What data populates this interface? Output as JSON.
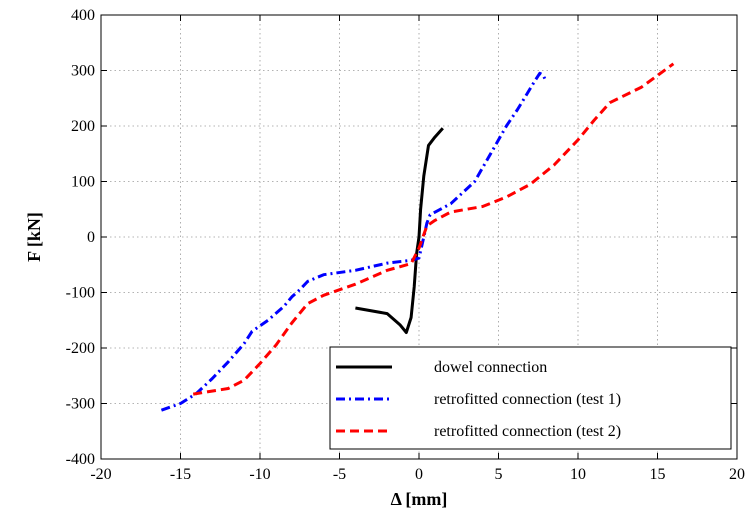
{
  "chart_data": {
    "type": "line",
    "title": "",
    "xlabel": "Δ [mm]",
    "ylabel": "F [kN]",
    "xlim": [
      -20,
      20
    ],
    "ylim": [
      -400,
      400
    ],
    "xticks": [
      -20,
      -15,
      -10,
      -5,
      0,
      5,
      10,
      15,
      20
    ],
    "yticks": [
      -400,
      -300,
      -200,
      -100,
      0,
      100,
      200,
      300,
      400
    ],
    "grid": true,
    "grid_style": "dotted",
    "legend_position": "bottom-right",
    "series": [
      {
        "name": "dowel connection",
        "color": "#000000",
        "style": "solid",
        "points": [
          [
            -4,
            -128
          ],
          [
            -2,
            -138
          ],
          [
            -1.2,
            -158
          ],
          [
            -0.8,
            -172
          ],
          [
            -0.5,
            -145
          ],
          [
            -0.3,
            -90
          ],
          [
            -0.15,
            -30
          ],
          [
            0,
            0
          ],
          [
            0.1,
            50
          ],
          [
            0.3,
            110
          ],
          [
            0.6,
            165
          ],
          [
            1,
            180
          ],
          [
            1.5,
            196
          ]
        ]
      },
      {
        "name": "retrofitted connection (test 1)",
        "color": "#0000ff",
        "style": "dashdot",
        "points": [
          [
            -16.2,
            -312
          ],
          [
            -15,
            -300
          ],
          [
            -14,
            -282
          ],
          [
            -13,
            -255
          ],
          [
            -12,
            -225
          ],
          [
            -11,
            -192
          ],
          [
            -10.5,
            -170
          ],
          [
            -9.5,
            -150
          ],
          [
            -8.5,
            -125
          ],
          [
            -8,
            -108
          ],
          [
            -7.5,
            -95
          ],
          [
            -7,
            -80
          ],
          [
            -6,
            -68
          ],
          [
            -4,
            -60
          ],
          [
            -2,
            -47
          ],
          [
            -0.5,
            -42
          ],
          [
            0,
            -38
          ],
          [
            0.3,
            0
          ],
          [
            0.5,
            25
          ],
          [
            0.7,
            40
          ],
          [
            2,
            60
          ],
          [
            3.5,
            100
          ],
          [
            4.5,
            150
          ],
          [
            5.5,
            200
          ],
          [
            6.2,
            230
          ],
          [
            7.3,
            282
          ],
          [
            7.6,
            295
          ],
          [
            7.8,
            292
          ],
          [
            8,
            280
          ]
        ]
      },
      {
        "name": "retrofitted connection (test 2)",
        "color": "#ff0000",
        "style": "dashed",
        "points": [
          [
            -14.2,
            -283
          ],
          [
            -12,
            -273
          ],
          [
            -11,
            -258
          ],
          [
            -10,
            -228
          ],
          [
            -9,
            -195
          ],
          [
            -8,
            -155
          ],
          [
            -7,
            -120
          ],
          [
            -6,
            -105
          ],
          [
            -4,
            -85
          ],
          [
            -2,
            -60
          ],
          [
            -0.5,
            -48
          ],
          [
            0,
            -20
          ],
          [
            0.5,
            20
          ],
          [
            1,
            30
          ],
          [
            2,
            45
          ],
          [
            4,
            55
          ],
          [
            5.5,
            72
          ],
          [
            7,
            95
          ],
          [
            8.5,
            130
          ],
          [
            10,
            175
          ],
          [
            11,
            210
          ],
          [
            12,
            242
          ],
          [
            14,
            270
          ],
          [
            16,
            312
          ]
        ]
      }
    ]
  }
}
